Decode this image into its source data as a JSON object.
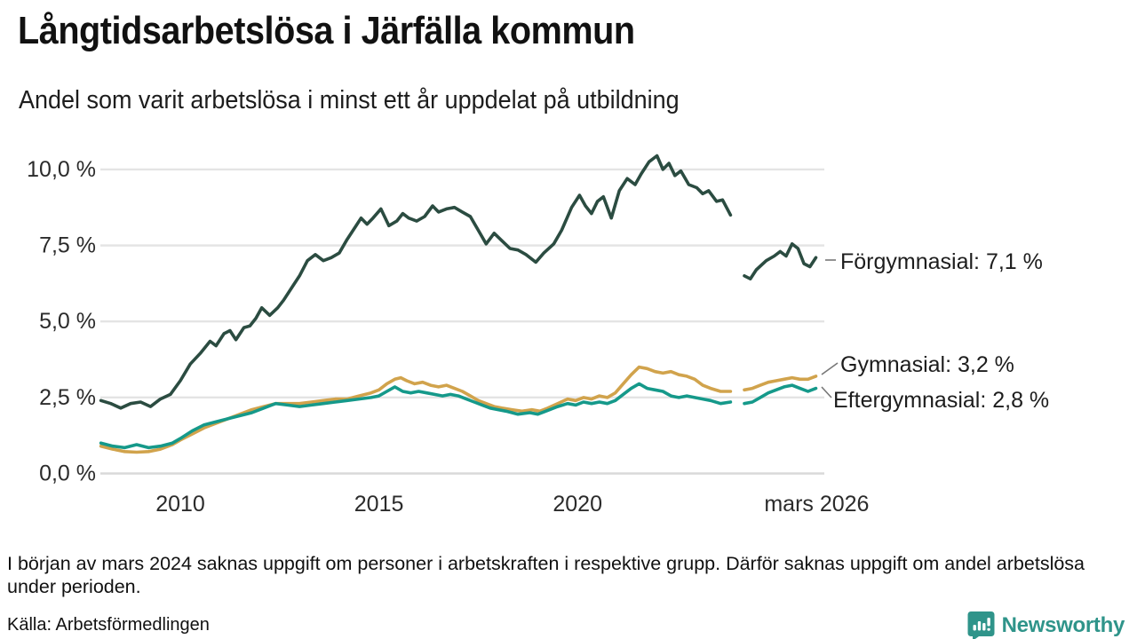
{
  "header": {
    "title": "Långtidsarbetslösa i Järfälla kommun",
    "subtitle": "Andel som varit arbetslösa i minst ett år uppdelat på utbildning"
  },
  "footer": {
    "note": "I början av mars 2024 saknas uppgift om personer i arbetskraften i respektive grupp. Därför saknas uppgift om andel arbetslösa under perioden.",
    "source": "Källa: Arbetsförmedlingen",
    "brand": "Newsworthy"
  },
  "colors": {
    "forgymnasial": "#2b4c41",
    "gymnasial": "#d1a34c",
    "eftergymnasial": "#15998a",
    "grid": "#e4e4e4",
    "zero_line": "#d9d9d9",
    "tick_text": "#2b2b2b",
    "connector": "#777777",
    "brand_teal": "#2f948a"
  },
  "chart_data": {
    "type": "line",
    "title": "Långtidsarbetslösa i Järfälla kommun",
    "subtitle": "Andel som varit arbetslösa i minst ett år uppdelat på utbildning",
    "ylabel": "",
    "xlabel": "",
    "ylim": [
      0,
      10.8
    ],
    "xlim": [
      2007.9,
      2026.3
    ],
    "grid": "horizontal",
    "legend_position": "right-end-labels",
    "gap_note": "values are null around March 2024 where data is missing",
    "y_ticks": [
      {
        "label": "0,0 %",
        "value": 0
      },
      {
        "label": "2,5 %",
        "value": 2.5
      },
      {
        "label": "5,0 %",
        "value": 5
      },
      {
        "label": "7,5 %",
        "value": 7.5
      },
      {
        "label": "10,0 %",
        "value": 10
      }
    ],
    "x_ticks": [
      {
        "label": "2010",
        "value": 2010
      },
      {
        "label": "2015",
        "value": 2015
      },
      {
        "label": "2020",
        "value": 2020
      },
      {
        "label": "mars 2026",
        "value": 2026.02
      }
    ],
    "series": [
      {
        "name": "Förgymnasial",
        "label": "Förgymnasial: 7,1 %",
        "end_value": 7.1,
        "color_key": "forgymnasial",
        "points": [
          [
            2008.0,
            2.4
          ],
          [
            2008.25,
            2.3
          ],
          [
            2008.5,
            2.15
          ],
          [
            2008.75,
            2.3
          ],
          [
            2009.0,
            2.35
          ],
          [
            2009.25,
            2.2
          ],
          [
            2009.5,
            2.45
          ],
          [
            2009.75,
            2.6
          ],
          [
            2010.0,
            3.05
          ],
          [
            2010.25,
            3.6
          ],
          [
            2010.5,
            3.95
          ],
          [
            2010.75,
            4.35
          ],
          [
            2010.9,
            4.2
          ],
          [
            2011.1,
            4.6
          ],
          [
            2011.25,
            4.7
          ],
          [
            2011.4,
            4.4
          ],
          [
            2011.6,
            4.8
          ],
          [
            2011.75,
            4.85
          ],
          [
            2011.9,
            5.1
          ],
          [
            2012.05,
            5.45
          ],
          [
            2012.25,
            5.2
          ],
          [
            2012.45,
            5.45
          ],
          [
            2012.6,
            5.7
          ],
          [
            2012.8,
            6.1
          ],
          [
            2013.0,
            6.5
          ],
          [
            2013.2,
            7.0
          ],
          [
            2013.4,
            7.2
          ],
          [
            2013.6,
            7.0
          ],
          [
            2013.8,
            7.1
          ],
          [
            2014.0,
            7.25
          ],
          [
            2014.2,
            7.7
          ],
          [
            2014.4,
            8.1
          ],
          [
            2014.55,
            8.4
          ],
          [
            2014.7,
            8.2
          ],
          [
            2014.85,
            8.4
          ],
          [
            2015.05,
            8.7
          ],
          [
            2015.25,
            8.15
          ],
          [
            2015.45,
            8.3
          ],
          [
            2015.6,
            8.55
          ],
          [
            2015.75,
            8.4
          ],
          [
            2015.95,
            8.3
          ],
          [
            2016.15,
            8.45
          ],
          [
            2016.35,
            8.8
          ],
          [
            2016.5,
            8.6
          ],
          [
            2016.7,
            8.7
          ],
          [
            2016.9,
            8.75
          ],
          [
            2017.1,
            8.6
          ],
          [
            2017.3,
            8.45
          ],
          [
            2017.5,
            8.0
          ],
          [
            2017.7,
            7.55
          ],
          [
            2017.9,
            7.9
          ],
          [
            2018.1,
            7.65
          ],
          [
            2018.3,
            7.4
          ],
          [
            2018.5,
            7.35
          ],
          [
            2018.7,
            7.2
          ],
          [
            2018.95,
            6.95
          ],
          [
            2019.15,
            7.25
          ],
          [
            2019.4,
            7.55
          ],
          [
            2019.6,
            8.0
          ],
          [
            2019.85,
            8.75
          ],
          [
            2020.05,
            9.15
          ],
          [
            2020.2,
            8.8
          ],
          [
            2020.35,
            8.55
          ],
          [
            2020.5,
            8.95
          ],
          [
            2020.65,
            9.1
          ],
          [
            2020.85,
            8.4
          ],
          [
            2021.05,
            9.3
          ],
          [
            2021.25,
            9.7
          ],
          [
            2021.45,
            9.5
          ],
          [
            2021.6,
            9.85
          ],
          [
            2021.8,
            10.25
          ],
          [
            2022.0,
            10.45
          ],
          [
            2022.15,
            10.0
          ],
          [
            2022.3,
            10.2
          ],
          [
            2022.45,
            9.8
          ],
          [
            2022.6,
            9.95
          ],
          [
            2022.8,
            9.5
          ],
          [
            2023.0,
            9.4
          ],
          [
            2023.15,
            9.2
          ],
          [
            2023.3,
            9.3
          ],
          [
            2023.5,
            8.95
          ],
          [
            2023.65,
            9.0
          ],
          [
            2023.85,
            8.5
          ],
          [
            2024.0,
            null
          ],
          [
            2024.2,
            6.5
          ],
          [
            2024.35,
            6.4
          ],
          [
            2024.5,
            6.7
          ],
          [
            2024.75,
            7.0
          ],
          [
            2024.95,
            7.15
          ],
          [
            2025.1,
            7.3
          ],
          [
            2025.25,
            7.15
          ],
          [
            2025.4,
            7.55
          ],
          [
            2025.55,
            7.4
          ],
          [
            2025.7,
            6.9
          ],
          [
            2025.85,
            6.8
          ],
          [
            2026.0,
            7.1
          ]
        ]
      },
      {
        "name": "Gymnasial",
        "label": "Gymnasial: 3,2 %",
        "end_value": 3.2,
        "color_key": "gymnasial",
        "points": [
          [
            2008.0,
            0.9
          ],
          [
            2008.3,
            0.8
          ],
          [
            2008.6,
            0.72
          ],
          [
            2008.9,
            0.7
          ],
          [
            2009.2,
            0.72
          ],
          [
            2009.5,
            0.8
          ],
          [
            2009.8,
            0.95
          ],
          [
            2010.0,
            1.1
          ],
          [
            2010.3,
            1.3
          ],
          [
            2010.6,
            1.5
          ],
          [
            2010.9,
            1.65
          ],
          [
            2011.2,
            1.8
          ],
          [
            2011.5,
            1.95
          ],
          [
            2011.8,
            2.1
          ],
          [
            2012.1,
            2.2
          ],
          [
            2012.4,
            2.3
          ],
          [
            2012.7,
            2.3
          ],
          [
            2013.0,
            2.3
          ],
          [
            2013.3,
            2.35
          ],
          [
            2013.6,
            2.4
          ],
          [
            2013.9,
            2.45
          ],
          [
            2014.2,
            2.45
          ],
          [
            2014.5,
            2.55
          ],
          [
            2014.8,
            2.65
          ],
          [
            2015.0,
            2.75
          ],
          [
            2015.2,
            2.95
          ],
          [
            2015.4,
            3.1
          ],
          [
            2015.55,
            3.15
          ],
          [
            2015.7,
            3.05
          ],
          [
            2015.9,
            2.95
          ],
          [
            2016.1,
            3.0
          ],
          [
            2016.3,
            2.9
          ],
          [
            2016.5,
            2.85
          ],
          [
            2016.7,
            2.9
          ],
          [
            2016.9,
            2.8
          ],
          [
            2017.1,
            2.7
          ],
          [
            2017.3,
            2.55
          ],
          [
            2017.5,
            2.4
          ],
          [
            2017.7,
            2.3
          ],
          [
            2017.9,
            2.2
          ],
          [
            2018.1,
            2.15
          ],
          [
            2018.35,
            2.1
          ],
          [
            2018.6,
            2.05
          ],
          [
            2018.85,
            2.1
          ],
          [
            2019.05,
            2.05
          ],
          [
            2019.25,
            2.15
          ],
          [
            2019.5,
            2.3
          ],
          [
            2019.75,
            2.45
          ],
          [
            2019.95,
            2.4
          ],
          [
            2020.15,
            2.5
          ],
          [
            2020.35,
            2.45
          ],
          [
            2020.55,
            2.55
          ],
          [
            2020.75,
            2.5
          ],
          [
            2020.95,
            2.65
          ],
          [
            2021.15,
            2.95
          ],
          [
            2021.35,
            3.25
          ],
          [
            2021.55,
            3.5
          ],
          [
            2021.75,
            3.45
          ],
          [
            2021.95,
            3.35
          ],
          [
            2022.15,
            3.3
          ],
          [
            2022.35,
            3.35
          ],
          [
            2022.55,
            3.25
          ],
          [
            2022.75,
            3.2
          ],
          [
            2022.95,
            3.1
          ],
          [
            2023.15,
            2.9
          ],
          [
            2023.35,
            2.8
          ],
          [
            2023.6,
            2.7
          ],
          [
            2023.85,
            2.7
          ],
          [
            2024.0,
            null
          ],
          [
            2024.2,
            2.75
          ],
          [
            2024.4,
            2.8
          ],
          [
            2024.6,
            2.9
          ],
          [
            2024.8,
            3.0
          ],
          [
            2025.0,
            3.05
          ],
          [
            2025.2,
            3.1
          ],
          [
            2025.4,
            3.15
          ],
          [
            2025.6,
            3.1
          ],
          [
            2025.8,
            3.1
          ],
          [
            2026.0,
            3.2
          ]
        ]
      },
      {
        "name": "Eftergymnasial",
        "label": "Eftergymnasial: 2,8 %",
        "end_value": 2.8,
        "color_key": "eftergymnasial",
        "points": [
          [
            2008.0,
            1.0
          ],
          [
            2008.3,
            0.9
          ],
          [
            2008.6,
            0.85
          ],
          [
            2008.9,
            0.95
          ],
          [
            2009.2,
            0.85
          ],
          [
            2009.5,
            0.9
          ],
          [
            2009.8,
            1.0
          ],
          [
            2010.0,
            1.15
          ],
          [
            2010.3,
            1.4
          ],
          [
            2010.6,
            1.6
          ],
          [
            2010.9,
            1.7
          ],
          [
            2011.2,
            1.8
          ],
          [
            2011.5,
            1.9
          ],
          [
            2011.8,
            2.0
          ],
          [
            2012.1,
            2.15
          ],
          [
            2012.4,
            2.3
          ],
          [
            2012.7,
            2.25
          ],
          [
            2013.0,
            2.2
          ],
          [
            2013.3,
            2.25
          ],
          [
            2013.6,
            2.3
          ],
          [
            2013.9,
            2.35
          ],
          [
            2014.2,
            2.4
          ],
          [
            2014.5,
            2.45
          ],
          [
            2014.8,
            2.5
          ],
          [
            2015.0,
            2.55
          ],
          [
            2015.2,
            2.7
          ],
          [
            2015.4,
            2.85
          ],
          [
            2015.6,
            2.7
          ],
          [
            2015.8,
            2.65
          ],
          [
            2016.0,
            2.7
          ],
          [
            2016.2,
            2.65
          ],
          [
            2016.4,
            2.6
          ],
          [
            2016.6,
            2.55
          ],
          [
            2016.8,
            2.6
          ],
          [
            2017.0,
            2.55
          ],
          [
            2017.2,
            2.45
          ],
          [
            2017.4,
            2.35
          ],
          [
            2017.6,
            2.25
          ],
          [
            2017.8,
            2.15
          ],
          [
            2018.0,
            2.1
          ],
          [
            2018.2,
            2.05
          ],
          [
            2018.5,
            1.95
          ],
          [
            2018.8,
            2.0
          ],
          [
            2019.0,
            1.95
          ],
          [
            2019.2,
            2.05
          ],
          [
            2019.5,
            2.2
          ],
          [
            2019.75,
            2.3
          ],
          [
            2019.95,
            2.25
          ],
          [
            2020.15,
            2.35
          ],
          [
            2020.35,
            2.3
          ],
          [
            2020.55,
            2.35
          ],
          [
            2020.75,
            2.3
          ],
          [
            2020.95,
            2.4
          ],
          [
            2021.15,
            2.6
          ],
          [
            2021.35,
            2.8
          ],
          [
            2021.55,
            2.95
          ],
          [
            2021.75,
            2.8
          ],
          [
            2021.95,
            2.75
          ],
          [
            2022.15,
            2.7
          ],
          [
            2022.35,
            2.55
          ],
          [
            2022.55,
            2.5
          ],
          [
            2022.75,
            2.55
          ],
          [
            2022.95,
            2.5
          ],
          [
            2023.15,
            2.45
          ],
          [
            2023.35,
            2.4
          ],
          [
            2023.6,
            2.3
          ],
          [
            2023.85,
            2.35
          ],
          [
            2024.0,
            null
          ],
          [
            2024.2,
            2.3
          ],
          [
            2024.4,
            2.35
          ],
          [
            2024.6,
            2.5
          ],
          [
            2024.8,
            2.65
          ],
          [
            2025.0,
            2.75
          ],
          [
            2025.2,
            2.85
          ],
          [
            2025.4,
            2.9
          ],
          [
            2025.6,
            2.8
          ],
          [
            2025.8,
            2.7
          ],
          [
            2026.0,
            2.8
          ]
        ]
      }
    ]
  }
}
